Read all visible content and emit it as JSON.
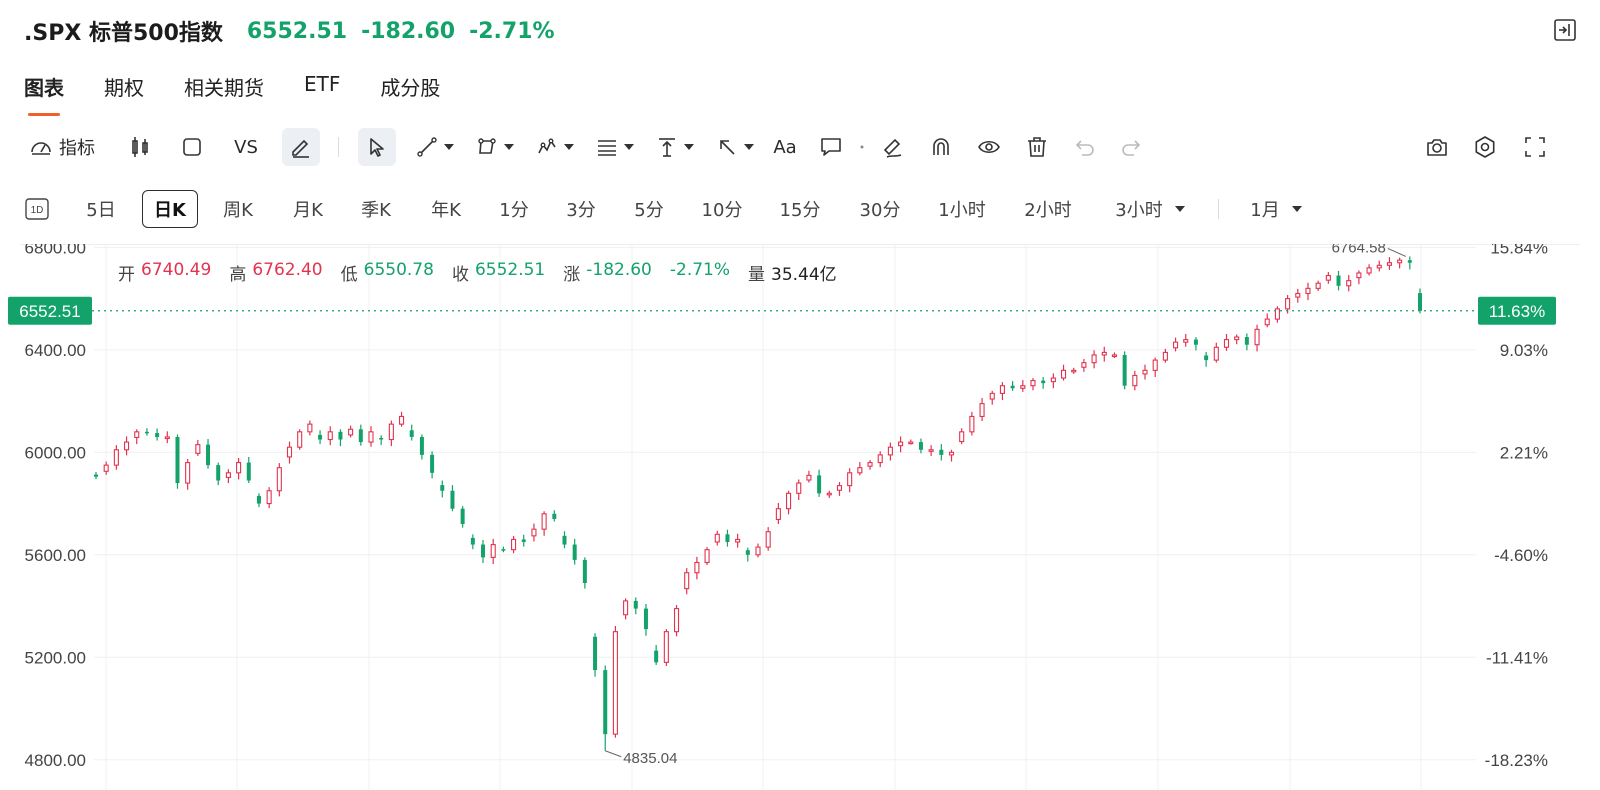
{
  "header": {
    "symbol_title": ".SPX 标普500指数",
    "price": "6552.51",
    "change": "-182.60",
    "change_pct": "-2.71%"
  },
  "tabs": [
    {
      "label": "图表",
      "active": true
    },
    {
      "label": "期权",
      "active": false
    },
    {
      "label": "相关期货",
      "active": false
    },
    {
      "label": "ETF",
      "active": false
    },
    {
      "label": "成分股",
      "active": false
    }
  ],
  "toolbar": {
    "indicators_label": "指标",
    "compare_label": "VS",
    "text_tool_label": "Aa"
  },
  "periods": {
    "period_icon_label": "1D",
    "items": [
      "5日",
      "日K",
      "周K",
      "月K",
      "季K",
      "年K",
      "1分",
      "3分",
      "5分",
      "10分",
      "15分",
      "30分",
      "1小时",
      "2小时",
      "3小时"
    ],
    "active": "日K",
    "range_label": "1月"
  },
  "ohlc": {
    "open_label": "开",
    "open": "6740.49",
    "high_label": "高",
    "high": "6762.40",
    "low_label": "低",
    "low": "6550.78",
    "close_label": "收",
    "close": "6552.51",
    "chg_label": "涨",
    "chg": "-182.60",
    "chg_pct": "-2.71%",
    "vol_label": "量",
    "vol": "35.44亿"
  },
  "colors": {
    "up": "#e2334f",
    "down": "#13a36a",
    "accent": "#f0602a",
    "grid": "#f0f0f0"
  },
  "chart_data": {
    "type": "candlestick",
    "ylim": [
      4760,
      6860
    ],
    "y_ticks": [
      "6800.00",
      "6400.00",
      "6000.00",
      "5600.00",
      "5200.00",
      "4800.00"
    ],
    "y_tick_values": [
      6800,
      6400,
      6000,
      5600,
      5200,
      4800
    ],
    "right_ticks": [
      "15.84%",
      "9.03%",
      "2.21%",
      "-4.60%",
      "-11.41%",
      "-18.23%"
    ],
    "last_price_label": "6552.51",
    "last_price_value": 6552.51,
    "last_pct_label": "11.63%",
    "high_annotation": "6764.58",
    "high_annotation_value": 6764.58,
    "low_annotation": "4835.04",
    "low_annotation_value": 4835.04,
    "close_path": [
      5905,
      5950,
      6010,
      6040,
      6080,
      6075,
      6060,
      6060,
      5880,
      5960,
      6030,
      5950,
      5890,
      5920,
      5960,
      5890,
      5800,
      5850,
      5940,
      6020,
      6080,
      6110,
      6050,
      6080,
      6050,
      6090,
      6040,
      6080,
      6050,
      6110,
      6140,
      6060,
      5990,
      5920,
      5850,
      5780,
      5720,
      5640,
      5590,
      5640,
      5620,
      5660,
      5650,
      5700,
      5760,
      5740,
      5640,
      5580,
      5490,
      5150,
      4900,
      5300,
      5420,
      5390,
      5310,
      5180,
      5300,
      5390,
      5530,
      5570,
      5620,
      5680,
      5650,
      5660,
      5600,
      5630,
      5690,
      5780,
      5840,
      5880,
      5910,
      5840,
      5840,
      5870,
      5920,
      5940,
      5960,
      5990,
      6020,
      6040,
      6040,
      6010,
      6010,
      5990,
      6000,
      6080,
      6140,
      6190,
      6230,
      6260,
      6250,
      6260,
      6280,
      6270,
      6290,
      6320,
      6320,
      6350,
      6380,
      6390,
      6380,
      6260,
      6300,
      6320,
      6360,
      6390,
      6430,
      6440,
      6420,
      6360,
      6410,
      6440,
      6450,
      6420,
      6480,
      6520,
      6560,
      6600,
      6620,
      6640,
      6660,
      6690,
      6650,
      6670,
      6700,
      6720,
      6730,
      6740,
      6750,
      6740,
      6552.51
    ]
  }
}
